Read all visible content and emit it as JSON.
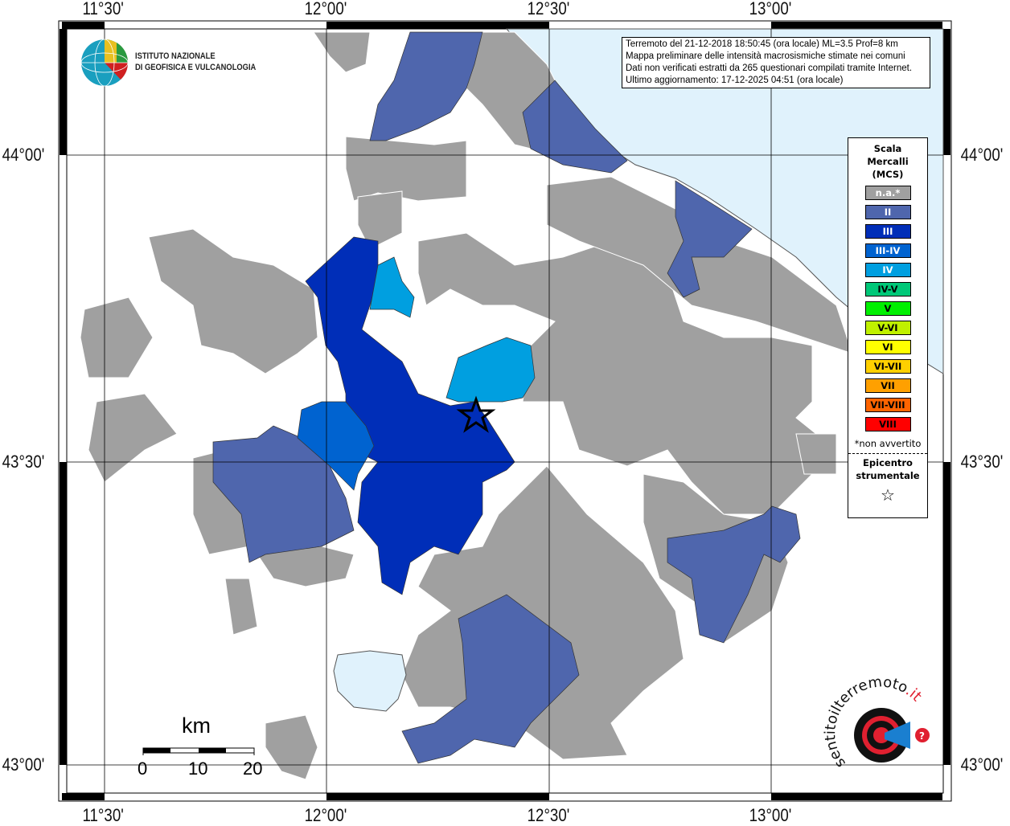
{
  "header": {
    "institution_line1": "ISTITUTO NAZIONALE",
    "institution_line2": "DI GEOFISICA E VULCANOLOGIA"
  },
  "info": {
    "line1": "Terremoto del 21-12-2018 18:50:45 (ora locale) ML=3.5 Prof=8 km",
    "line2": "Mappa preliminare delle intensità macrosismiche stimate nei comuni",
    "line3": "Dati non verificati estratti da 265 questionari compilati tramite Internet.",
    "line4": "Ultimo aggiornamento: 17-12-2025 04:51 (ora locale)"
  },
  "axes": {
    "lon": [
      "11°30'",
      "12°00'",
      "12°30'",
      "13°00'"
    ],
    "lat": [
      "44°00'",
      "43°30'",
      "43°00'"
    ]
  },
  "legend": {
    "title1": "Scala",
    "title2": "Mercalli",
    "title3": "(MCS)",
    "items": [
      {
        "label": "n.a.*",
        "color": "#a0a0a0",
        "text": "#ffffff"
      },
      {
        "label": "II",
        "color": "#4f66ad",
        "text": "#ffffff"
      },
      {
        "label": "III",
        "color": "#002eb8",
        "text": "#ffffff"
      },
      {
        "label": "III-IV",
        "color": "#0063d0",
        "text": "#ffffff"
      },
      {
        "label": "IV",
        "color": "#009fe0",
        "text": "#ffffff"
      },
      {
        "label": "IV-V",
        "color": "#00c878",
        "text": "#000000"
      },
      {
        "label": "V",
        "color": "#00f000",
        "text": "#000000"
      },
      {
        "label": "V-VI",
        "color": "#c0f000",
        "text": "#000000"
      },
      {
        "label": "VI",
        "color": "#ffff00",
        "text": "#000000"
      },
      {
        "label": "VI-VII",
        "color": "#ffd000",
        "text": "#000000"
      },
      {
        "label": "VII",
        "color": "#ffa000",
        "text": "#000000"
      },
      {
        "label": "VII-VIII",
        "color": "#ff6400",
        "text": "#000000"
      },
      {
        "label": "VIII",
        "color": "#ff0000",
        "text": "#000000"
      }
    ],
    "note": "*non avvertito",
    "epicenter1": "Epicentro",
    "epicenter2": "strumentale",
    "epicenter_symbol": "☆"
  },
  "scale": {
    "unit": "km",
    "labels": [
      "0",
      "10",
      "20"
    ]
  },
  "hsit_logo": "www.haisentitoilterremoto.it",
  "colors": {
    "sea": "#e0f2fc",
    "lake": "#e0f2fc",
    "na": "#a0a0a0"
  }
}
